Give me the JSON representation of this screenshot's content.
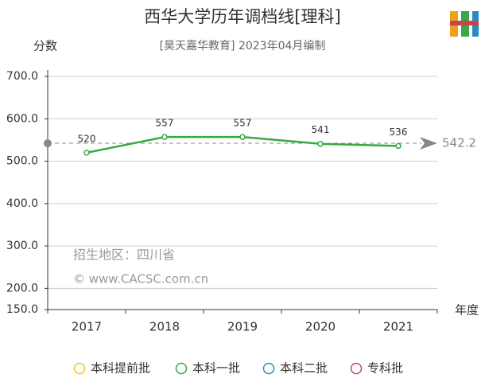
{
  "chart_data": {
    "type": "line",
    "title": "西华大学历年调档线[理科]",
    "subtitle": "[昊天嘉华教育] 2023年04月编制",
    "y_label": "分数",
    "x_label": "年度",
    "annotations": [
      "招生地区：四川省",
      "© www.CACSC.com.cn"
    ],
    "categories": [
      "2017",
      "2018",
      "2019",
      "2020",
      "2021"
    ],
    "series": [
      {
        "name": "本科提前批",
        "color": "#e8c619",
        "values": [
          null,
          null,
          null,
          null,
          null
        ]
      },
      {
        "name": "本科一批",
        "color": "#3aa845",
        "values": [
          520,
          557,
          557,
          541,
          536
        ]
      },
      {
        "name": "本科二批",
        "color": "#2b8cc4",
        "values": [
          null,
          null,
          null,
          null,
          null
        ]
      },
      {
        "name": "专科批",
        "color": "#c8454f",
        "values": [
          null,
          null,
          null,
          null,
          null
        ]
      }
    ],
    "average": 542.2,
    "ylim": [
      150,
      715
    ],
    "yticks": [
      {
        "value": 150,
        "label": "150.0"
      },
      {
        "value": 200,
        "label": "200.0"
      },
      {
        "value": 300,
        "label": "300.0"
      },
      {
        "value": 400,
        "label": "400.0"
      },
      {
        "value": 500,
        "label": "500.0"
      },
      {
        "value": 600,
        "label": "600.0"
      },
      {
        "value": 700,
        "label": "700.0"
      }
    ],
    "grid": true
  }
}
